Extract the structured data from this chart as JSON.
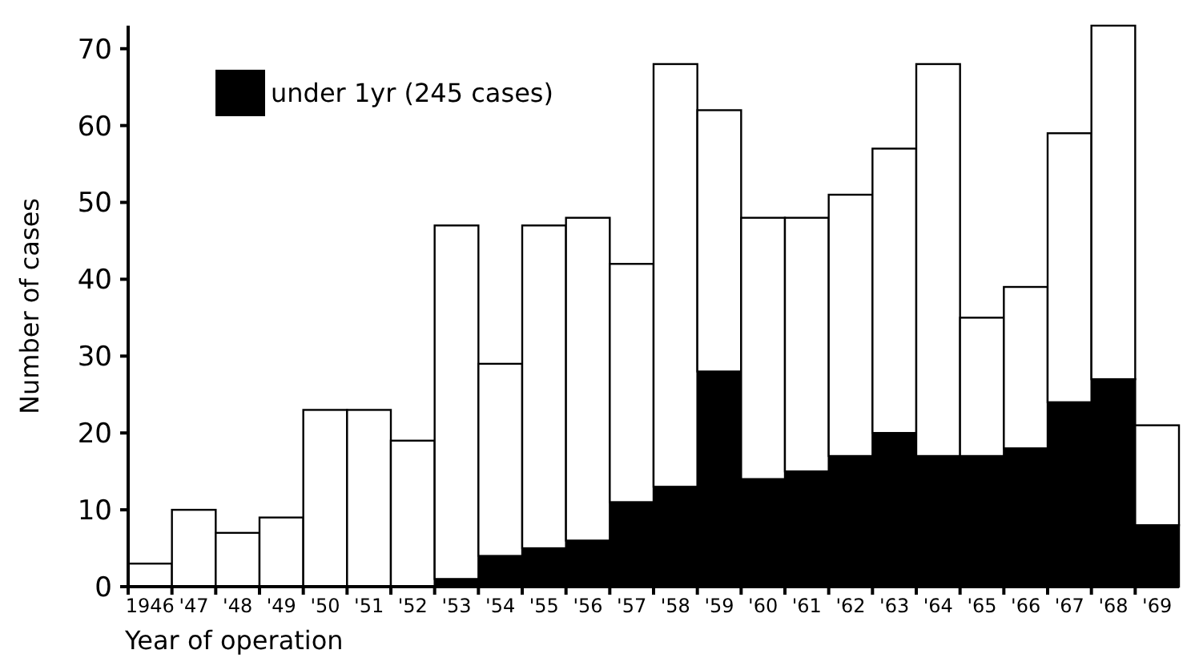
{
  "chart_data": {
    "type": "bar",
    "stacked": true,
    "xlabel": "Year of operation",
    "ylabel": "Number of cases",
    "categories": [
      "1946",
      "'47",
      "'48",
      "'49",
      "'50",
      "'51",
      "'52",
      "'53",
      "'54",
      "'55",
      "'56",
      "'57",
      "'58",
      "'59",
      "'60",
      "'61",
      "'62",
      "'63",
      "'64",
      "'65",
      "'66",
      "'67",
      "'68",
      "'69"
    ],
    "series": [
      {
        "name": "under 1yr (245 cases)",
        "color": "#000000",
        "values": [
          0,
          0,
          0,
          0,
          0,
          0,
          0,
          1,
          4,
          5,
          6,
          11,
          13,
          28,
          14,
          15,
          17,
          20,
          17,
          17,
          18,
          24,
          27,
          8
        ]
      },
      {
        "color": "#ffffff",
        "values": [
          3,
          10,
          7,
          9,
          23,
          23,
          19,
          46,
          25,
          42,
          42,
          31,
          55,
          34,
          34,
          33,
          34,
          37,
          51,
          18,
          21,
          35,
          46,
          13
        ]
      }
    ],
    "ylim": [
      0,
      73
    ],
    "yticks": [
      0,
      10,
      20,
      30,
      40,
      50,
      60,
      70
    ],
    "legend": "top left",
    "grid": false
  }
}
